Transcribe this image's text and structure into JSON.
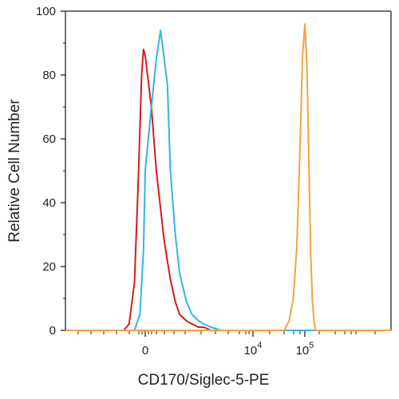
{
  "chart_data": {
    "type": "line",
    "title": "",
    "xlabel": "CD170/Siglec-5-PE",
    "ylabel": "Relative Cell Number",
    "x_scale": "biexponential",
    "ylim": [
      0,
      100
    ],
    "y_ticks": [
      "0",
      "20",
      "40",
      "60",
      "80",
      "100"
    ],
    "x_ticks": [
      {
        "label": "0",
        "value": 0
      },
      {
        "label": "10",
        "exp": "4",
        "value": 10000
      },
      {
        "label": "10",
        "exp": "5",
        "value": 100000
      }
    ],
    "grid": false,
    "legend": "none",
    "series": [
      {
        "color": "#d7191c",
        "x": [
          -600,
          -450,
          -300,
          -200,
          -100,
          -50,
          0,
          50,
          100,
          200,
          300,
          400,
          500,
          700,
          900,
          1200,
          1500,
          2000
        ],
        "values": [
          0,
          2,
          15,
          45,
          80,
          88,
          86,
          70,
          50,
          28,
          16,
          9,
          5,
          3,
          2,
          1,
          1,
          0
        ]
      },
      {
        "color": "#33b5e5",
        "x": [
          -300,
          -150,
          -50,
          0,
          50,
          100,
          150,
          200,
          250,
          300,
          400,
          500,
          700,
          900,
          1200,
          1500,
          2000,
          3000
        ],
        "values": [
          0,
          5,
          25,
          50,
          70,
          85,
          94,
          85,
          77,
          50,
          30,
          18,
          9,
          5,
          3,
          2,
          1,
          0
        ]
      },
      {
        "color": "#f4a340",
        "x": [
          40000,
          50000,
          60000,
          70000,
          80000,
          90000,
          100000,
          110000,
          120000,
          130000,
          140000,
          150000,
          160000
        ],
        "values": [
          0,
          3,
          10,
          26,
          55,
          85,
          96,
          82,
          52,
          24,
          9,
          3,
          0
        ]
      }
    ]
  }
}
